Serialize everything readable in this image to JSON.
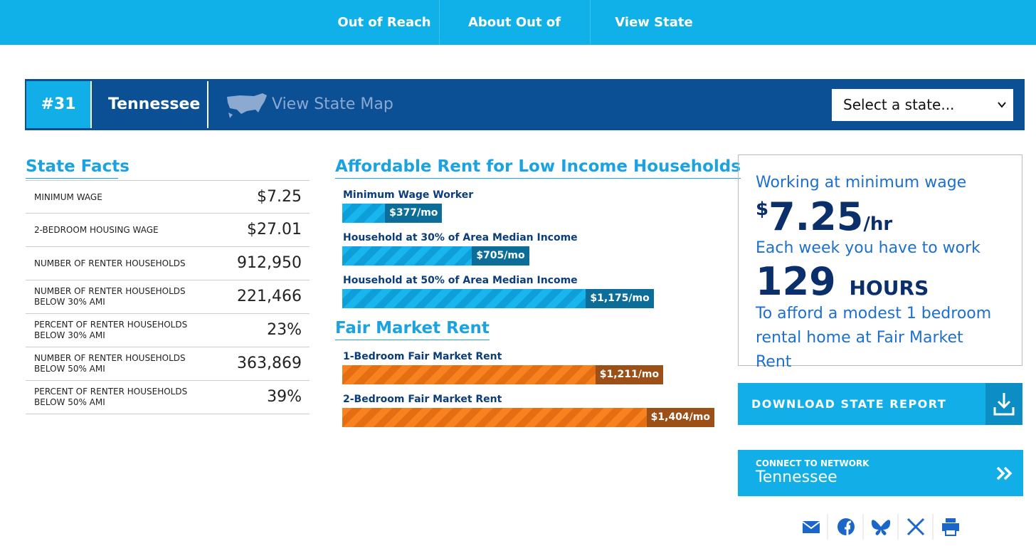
{
  "nav": [
    "Out of Reach",
    "About Out of Reach",
    "View State Data"
  ],
  "state_bar": {
    "rank": "#31",
    "state": "Tennessee",
    "map_link": "View State Map",
    "select": "Select a state..."
  },
  "state_facts": {
    "title": "State Facts",
    "rows": [
      [
        "MINIMUM WAGE",
        "$7.25"
      ],
      [
        "2-BEDROOM HOUSING WAGE",
        "$27.01"
      ],
      [
        "NUMBER OF RENTER HOUSEHOLDS",
        "912,950"
      ],
      [
        "NUMBER OF RENTER HOUSEHOLDS BELOW 30% AMI",
        "221,466"
      ],
      [
        "PERCENT OF RENTER HOUSEHOLDS BELOW 30% AMI",
        "23%"
      ],
      [
        "NUMBER OF RENTER HOUSEHOLDS BELOW 50% AMI",
        "363,869"
      ],
      [
        "PERCENT OF RENTER HOUSEHOLDS BELOW 50% AMI",
        "39%"
      ]
    ]
  },
  "affordable_rent": {
    "title": "Affordable Rent for Low Income Households",
    "items": [
      {
        "label": "Minimum Wage Worker",
        "value": 377,
        "value_label": "$377/mo"
      },
      {
        "label": "Household at 30% of Area Median Income",
        "value": 705,
        "value_label": "$705/mo"
      },
      {
        "label": "Household at 50% of Area Median Income",
        "value": 1175,
        "value_label": "$1,175/mo"
      }
    ]
  },
  "fair_market_rent": {
    "title": "Fair Market Rent",
    "items": [
      {
        "label": "1-Bedroom Fair Market Rent",
        "value": 1211,
        "value_label": "$1,211/mo"
      },
      {
        "label": "2-Bedroom Fair Market Rent",
        "value": 1404,
        "value_label": "$1,404/mo"
      }
    ]
  },
  "work_box": {
    "line1": "Working at minimum wage",
    "wage_symbol": "$",
    "wage": "7.25",
    "wage_unit": "/hr",
    "line2": "Each week you have to work",
    "hours": "129",
    "hours_unit": "HOURS",
    "line3": "To afford a modest 1 bedroom rental home at Fair Market Rent"
  },
  "download": "DOWNLOAD STATE REPORT",
  "connect": {
    "label": "CONNECT TO NETWORK",
    "state": "Tennessee"
  }
}
